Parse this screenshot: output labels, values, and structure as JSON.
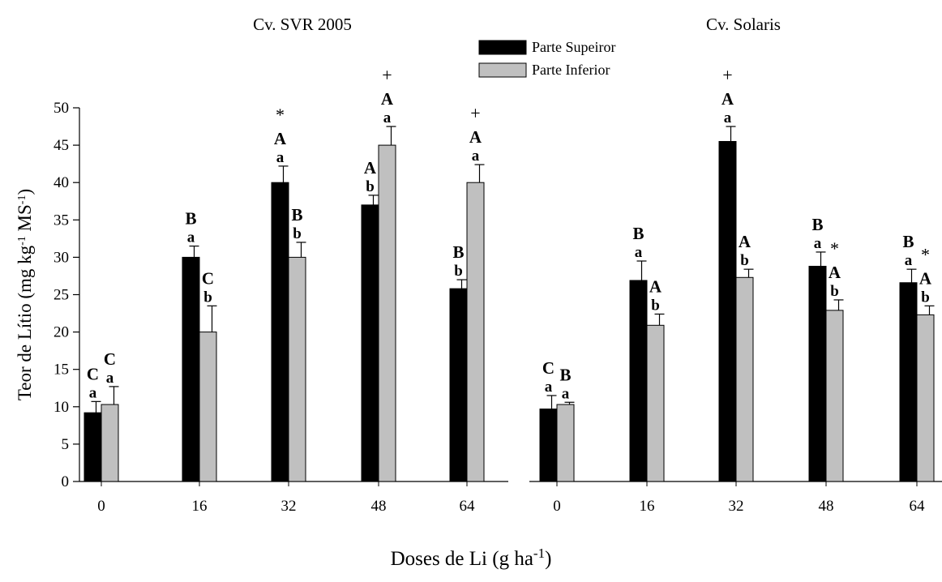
{
  "chart_data": {
    "type": "bar",
    "ylabel": "Teor de Lítio (mg kg-1 MS-1)",
    "xlabel": "Doses de Li (g ha-1)",
    "ylim": [
      0,
      50
    ],
    "yticks": [
      0,
      5,
      10,
      15,
      20,
      25,
      30,
      35,
      40,
      45,
      50
    ],
    "categories": [
      "0",
      "16",
      "32",
      "48",
      "64"
    ],
    "legend": {
      "placement": "top-center",
      "entries": [
        {
          "name": "Parte Supeiror",
          "color": "#000000"
        },
        {
          "name": "Parte Inferior",
          "color": "#c0c0c0"
        }
      ]
    },
    "panels": [
      {
        "title": "Cv. SVR 2005",
        "series": [
          {
            "name": "Parte Supeiror",
            "values": [
              9.2,
              30.0,
              40.0,
              37.0,
              25.8
            ],
            "errors": [
              1.5,
              1.5,
              2.2,
              1.3,
              1.2
            ],
            "labels": [
              [
                "C",
                "a"
              ],
              [
                "B",
                "a"
              ],
              [
                "*",
                "A",
                "a"
              ],
              [
                "A",
                "b"
              ],
              [
                "B",
                "b"
              ]
            ]
          },
          {
            "name": "Parte Inferior",
            "values": [
              10.3,
              20.0,
              30.0,
              45.0,
              40.0
            ],
            "errors": [
              2.4,
              3.5,
              2.0,
              2.5,
              2.4
            ],
            "labels": [
              [
                "C",
                "a"
              ],
              [
                "C",
                "b"
              ],
              [
                "B",
                "b"
              ],
              [
                "+",
                "A",
                "a"
              ],
              [
                "+",
                "A",
                "a"
              ]
            ]
          }
        ]
      },
      {
        "title": "Cv. Solaris",
        "series": [
          {
            "name": "Parte Supeiror",
            "values": [
              9.7,
              26.9,
              45.5,
              28.8,
              26.6
            ],
            "errors": [
              1.8,
              2.6,
              2.0,
              1.9,
              1.8
            ],
            "labels": [
              [
                "C",
                "a"
              ],
              [
                "B",
                "a"
              ],
              [
                "+",
                "A",
                "a"
              ],
              [
                "B",
                "a"
              ],
              [
                "B",
                "a"
              ]
            ]
          },
          {
            "name": "Parte Inferior",
            "values": [
              10.3,
              20.9,
              27.3,
              22.9,
              22.3
            ],
            "errors": [
              0.3,
              1.5,
              1.1,
              1.4,
              1.2
            ],
            "labels": [
              [
                "B",
                "a"
              ],
              [
                "A",
                "b"
              ],
              [
                "A",
                "b"
              ],
              [
                "*",
                "A",
                "b"
              ],
              [
                "*",
                "A",
                "b"
              ]
            ]
          }
        ]
      }
    ],
    "grid": false
  }
}
